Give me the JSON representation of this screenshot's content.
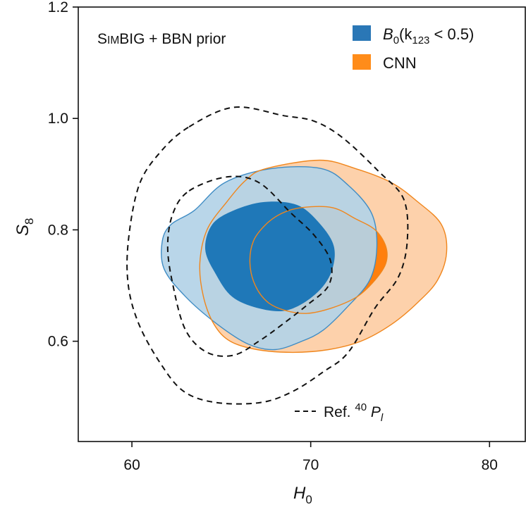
{
  "chart_data": {
    "type": "contour",
    "title": "SimBIG + BBN prior",
    "title_parts": {
      "smallcaps_lead": "S",
      "smallcaps_rest": "IM",
      "rest": "BIG + BBN prior"
    },
    "xlabel": {
      "base": "H",
      "sub": "0"
    },
    "ylabel": {
      "base": "S",
      "sub": "8"
    },
    "xlim": [
      57,
      82
    ],
    "ylim": [
      0.42,
      1.2
    ],
    "xticks": [
      {
        "value": 60,
        "label": "60"
      },
      {
        "value": 70,
        "label": "70"
      },
      {
        "value": 80,
        "label": "80"
      }
    ],
    "yticks": [
      {
        "value": 0.6,
        "label": "0.6"
      },
      {
        "value": 0.8,
        "label": "0.8"
      },
      {
        "value": 1.0,
        "label": "1.0"
      },
      {
        "value": 1.2,
        "label": "1.2"
      }
    ],
    "grid": false,
    "legend_position": "top-right",
    "legend": [
      {
        "key": "b0",
        "kind": "filled",
        "label": "B0(k123 < 0.5)",
        "parts": {
          "B": "B",
          "sub0": "0",
          "open": "(k",
          "sub123": "123",
          "rest": " < 0.5)"
        },
        "color": "#2a77b6"
      },
      {
        "key": "cnn",
        "kind": "filled",
        "label": "CNN",
        "color": "#ff8c1a"
      },
      {
        "key": "ref",
        "kind": "dashed",
        "label": "Ref. 40 Pl",
        "parts": {
          "ref": "Ref. ",
          "sup": "40",
          "P": " P",
          "sub": "l"
        },
        "color": "#111111"
      }
    ],
    "series": [
      {
        "name": "CNN",
        "color_fill_outer": "#fdd1ab",
        "color_fill_inner": "#ff7f0e",
        "color_line": "#f0861c",
        "contours": [
          {
            "level": "95%",
            "points": [
              [
                67.5,
                0.91
              ],
              [
                70.5,
                0.925
              ],
              [
                72.5,
                0.91
              ],
              [
                74.5,
                0.885
              ],
              [
                76,
                0.85
              ],
              [
                77.3,
                0.81
              ],
              [
                77.6,
                0.76
              ],
              [
                77.1,
                0.71
              ],
              [
                76,
                0.67
              ],
              [
                74.5,
                0.63
              ],
              [
                72.8,
                0.6
              ],
              [
                71,
                0.585
              ],
              [
                69,
                0.58
              ],
              [
                67,
                0.585
              ],
              [
                65.5,
                0.6
              ],
              [
                64.6,
                0.63
              ],
              [
                64,
                0.68
              ],
              [
                63.8,
                0.74
              ],
              [
                64.2,
                0.8
              ],
              [
                65.3,
                0.85
              ],
              [
                66.4,
                0.89
              ]
            ]
          },
          {
            "level": "68%",
            "points": [
              [
                69.5,
                0.84
              ],
              [
                71.2,
                0.84
              ],
              [
                72.5,
                0.82
              ],
              [
                73.6,
                0.8
              ],
              [
                74.2,
                0.77
              ],
              [
                74.2,
                0.74
              ],
              [
                73.6,
                0.71
              ],
              [
                72.6,
                0.68
              ],
              [
                71.2,
                0.66
              ],
              [
                69.8,
                0.65
              ],
              [
                68.6,
                0.655
              ],
              [
                67.6,
                0.67
              ],
              [
                66.9,
                0.7
              ],
              [
                66.6,
                0.74
              ],
              [
                66.8,
                0.78
              ],
              [
                67.5,
                0.81
              ],
              [
                68.4,
                0.83
              ]
            ]
          }
        ]
      },
      {
        "name": "B0(k123 < 0.5)",
        "color_fill_outer": "#b4d3e7",
        "color_fill_inner": "#1f78b8",
        "color_line": "#3f8cc4",
        "contours": [
          {
            "level": "95%",
            "points": [
              [
                63.5,
                0.835
              ],
              [
                65.2,
                0.885
              ],
              [
                67.8,
                0.91
              ],
              [
                70.6,
                0.91
              ],
              [
                72.1,
                0.88
              ],
              [
                73.4,
                0.83
              ],
              [
                73.7,
                0.77
              ],
              [
                73.3,
                0.71
              ],
              [
                72,
                0.66
              ],
              [
                70.7,
                0.62
              ],
              [
                69.5,
                0.6
              ],
              [
                68,
                0.585
              ],
              [
                66.5,
                0.595
              ],
              [
                64.8,
                0.63
              ],
              [
                63,
                0.68
              ],
              [
                61.8,
                0.73
              ],
              [
                61.7,
                0.78
              ],
              [
                62.2,
                0.81
              ]
            ]
          },
          {
            "level": "68%",
            "points": [
              [
                64.5,
                0.81
              ],
              [
                65.7,
                0.835
              ],
              [
                67.4,
                0.85
              ],
              [
                69.2,
                0.845
              ],
              [
                70.4,
                0.815
              ],
              [
                71.3,
                0.77
              ],
              [
                71.1,
                0.72
              ],
              [
                70.1,
                0.68
              ],
              [
                68.6,
                0.655
              ],
              [
                67,
                0.66
              ],
              [
                65.6,
                0.68
              ],
              [
                64.7,
                0.72
              ],
              [
                64.1,
                0.765
              ]
            ]
          }
        ]
      },
      {
        "name": "Ref. 40 Pl",
        "line_style": "dashed",
        "color_line": "#111111",
        "contours": [
          {
            "level": "95%",
            "points": [
              [
                63.2,
                0.985
              ],
              [
                65.7,
                1.02
              ],
              [
                68.5,
                1.005
              ],
              [
                70.2,
                0.995
              ],
              [
                71.8,
                0.965
              ],
              [
                73.8,
                0.905
              ],
              [
                75.2,
                0.855
              ],
              [
                75.4,
                0.78
              ],
              [
                74.9,
                0.715
              ],
              [
                73.6,
                0.66
              ],
              [
                72.1,
                0.58
              ],
              [
                70.7,
                0.545
              ],
              [
                69,
                0.51
              ],
              [
                67.2,
                0.49
              ],
              [
                64.7,
                0.49
              ],
              [
                62.9,
                0.51
              ],
              [
                61.6,
                0.56
              ],
              [
                60.4,
                0.63
              ],
              [
                59.8,
                0.7
              ],
              [
                59.8,
                0.78
              ],
              [
                60.4,
                0.88
              ],
              [
                61.6,
                0.94
              ]
            ]
          },
          {
            "level": "68%",
            "points": [
              [
                63.2,
                0.87
              ],
              [
                65.3,
                0.895
              ],
              [
                67.1,
                0.885
              ],
              [
                68.9,
                0.83
              ],
              [
                70.2,
                0.79
              ],
              [
                71.1,
                0.745
              ],
              [
                71,
                0.7
              ],
              [
                69.8,
                0.665
              ],
              [
                68.4,
                0.63
              ],
              [
                67.1,
                0.6
              ],
              [
                65.7,
                0.575
              ],
              [
                64.2,
                0.58
              ],
              [
                63,
                0.62
              ],
              [
                62.3,
                0.7
              ],
              [
                62,
                0.77
              ],
              [
                62.3,
                0.83
              ]
            ]
          }
        ]
      }
    ]
  }
}
